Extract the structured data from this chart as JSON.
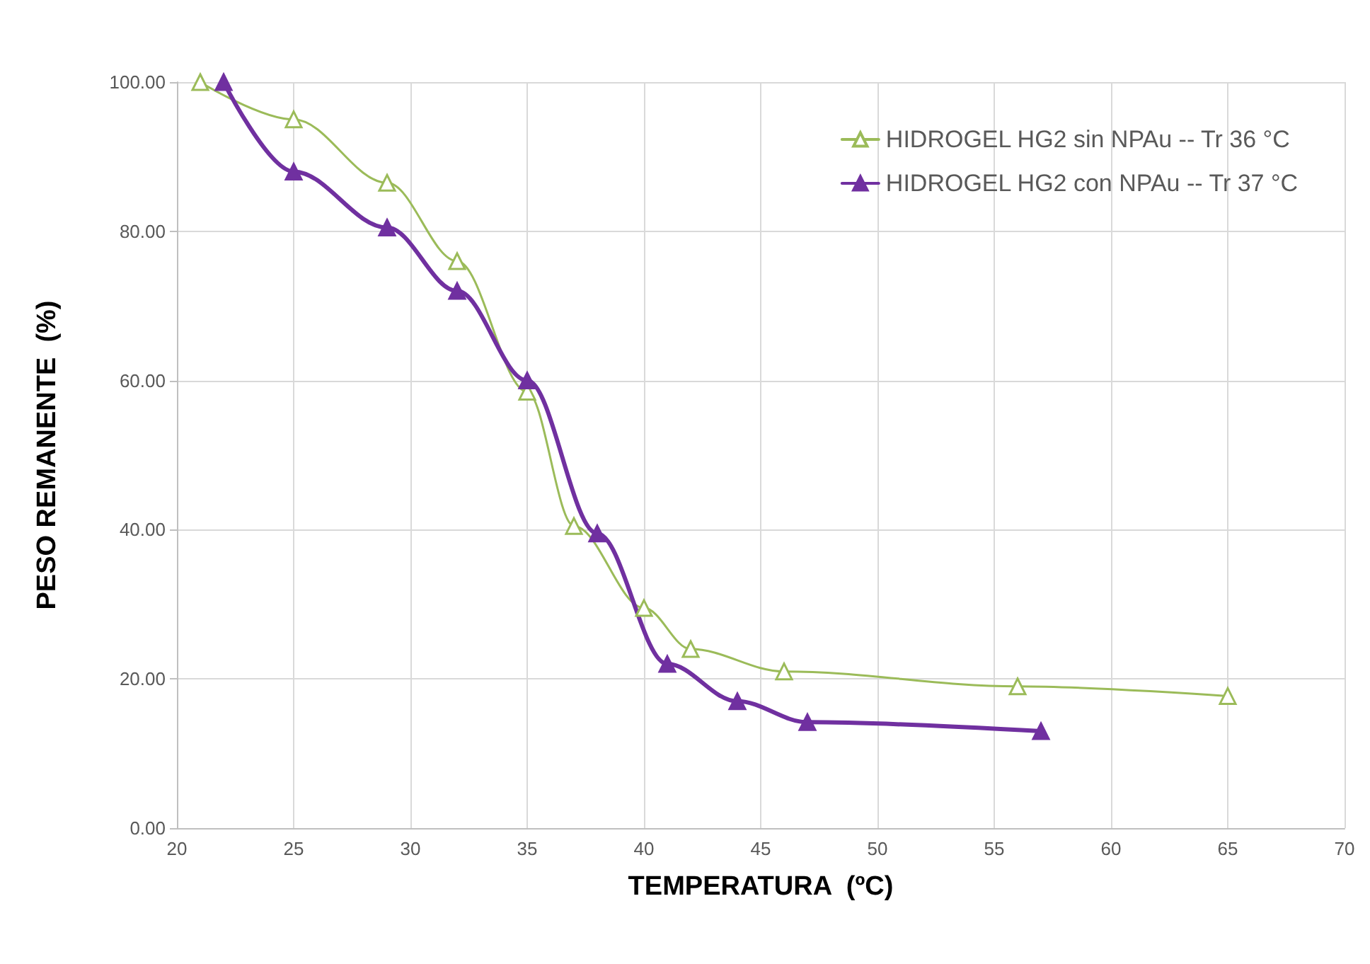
{
  "chart_data": {
    "type": "line",
    "xlabel": "TEMPERATURA  (ºC)",
    "ylabel": "PESO REMANENTE  (%)",
    "xlim": [
      20,
      70
    ],
    "xticks": [
      20,
      25,
      30,
      35,
      40,
      45,
      50,
      55,
      60,
      65,
      70
    ],
    "ylim": [
      0,
      100
    ],
    "yticks": [
      {
        "value": 0,
        "label": "0.00"
      },
      {
        "value": 20,
        "label": "20.00"
      },
      {
        "value": 40,
        "label": "40.00"
      },
      {
        "value": 60,
        "label": "60.00"
      },
      {
        "value": 80,
        "label": "80.00"
      },
      {
        "value": 100,
        "label": "100.00"
      }
    ],
    "grid": true,
    "legend": "top right",
    "marker": "triangle",
    "series": [
      {
        "name": "HIDROGEL HG2 sin NPAu -- Tr 36 °C",
        "color": "#9bbb59",
        "x": [
          21,
          25,
          29,
          32,
          35,
          37,
          40,
          42,
          46,
          56,
          65
        ],
        "values": [
          100,
          95,
          86.5,
          76,
          58.5,
          40.5,
          29.5,
          24,
          21,
          19,
          17.7
        ]
      },
      {
        "name": "HIDROGEL HG2 con NPAu -- Tr 37 °C",
        "color": "#7030a0",
        "x": [
          22,
          25,
          29,
          32,
          35,
          38,
          41,
          44,
          47,
          57
        ],
        "values": [
          100,
          88,
          80.5,
          72,
          60,
          39.5,
          22,
          17,
          14.2,
          13
        ]
      }
    ]
  }
}
